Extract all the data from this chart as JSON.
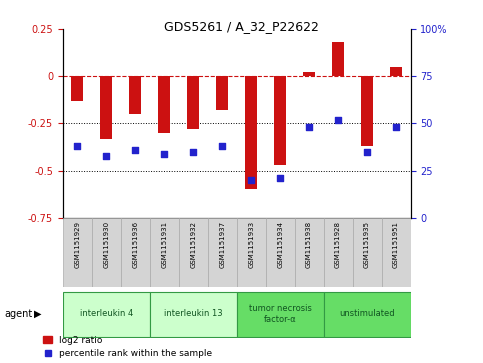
{
  "title": "GDS5261 / A_32_P22622",
  "samples": [
    "GSM1151929",
    "GSM1151930",
    "GSM1151936",
    "GSM1151931",
    "GSM1151932",
    "GSM1151937",
    "GSM1151933",
    "GSM1151934",
    "GSM1151938",
    "GSM1151928",
    "GSM1151935",
    "GSM1151951"
  ],
  "log2_ratio": [
    -0.13,
    -0.33,
    -0.2,
    -0.3,
    -0.28,
    -0.18,
    -0.6,
    -0.47,
    0.02,
    0.18,
    -0.37,
    0.05
  ],
  "percentile": [
    38,
    33,
    36,
    34,
    35,
    38,
    20,
    21,
    48,
    52,
    35,
    48
  ],
  "bar_color": "#cc1111",
  "dot_color": "#2222cc",
  "ylim_left": [
    -0.75,
    0.25
  ],
  "ylim_right": [
    0,
    100
  ],
  "yticks_left": [
    -0.75,
    -0.5,
    -0.25,
    0,
    0.25
  ],
  "yticks_right": [
    0,
    25,
    50,
    75,
    100
  ],
  "hline_y": 0,
  "dotted_lines": [
    -0.25,
    -0.5
  ],
  "groups": [
    {
      "label": "interleukin 4",
      "start": 0,
      "end": 3,
      "color": "#ccffcc"
    },
    {
      "label": "interleukin 13",
      "start": 3,
      "end": 6,
      "color": "#ccffcc"
    },
    {
      "label": "tumor necrosis\nfactor-α",
      "start": 6,
      "end": 9,
      "color": "#66dd66"
    },
    {
      "label": "unstimulated",
      "start": 9,
      "end": 12,
      "color": "#66dd66"
    }
  ],
  "agent_label": "agent",
  "legend_log2": "log2 ratio",
  "legend_pct": "percentile rank within the sample",
  "background_color": "#ffffff",
  "plot_bg": "#ffffff",
  "tick_label_color_left": "#cc1111",
  "tick_label_color_right": "#2222cc"
}
